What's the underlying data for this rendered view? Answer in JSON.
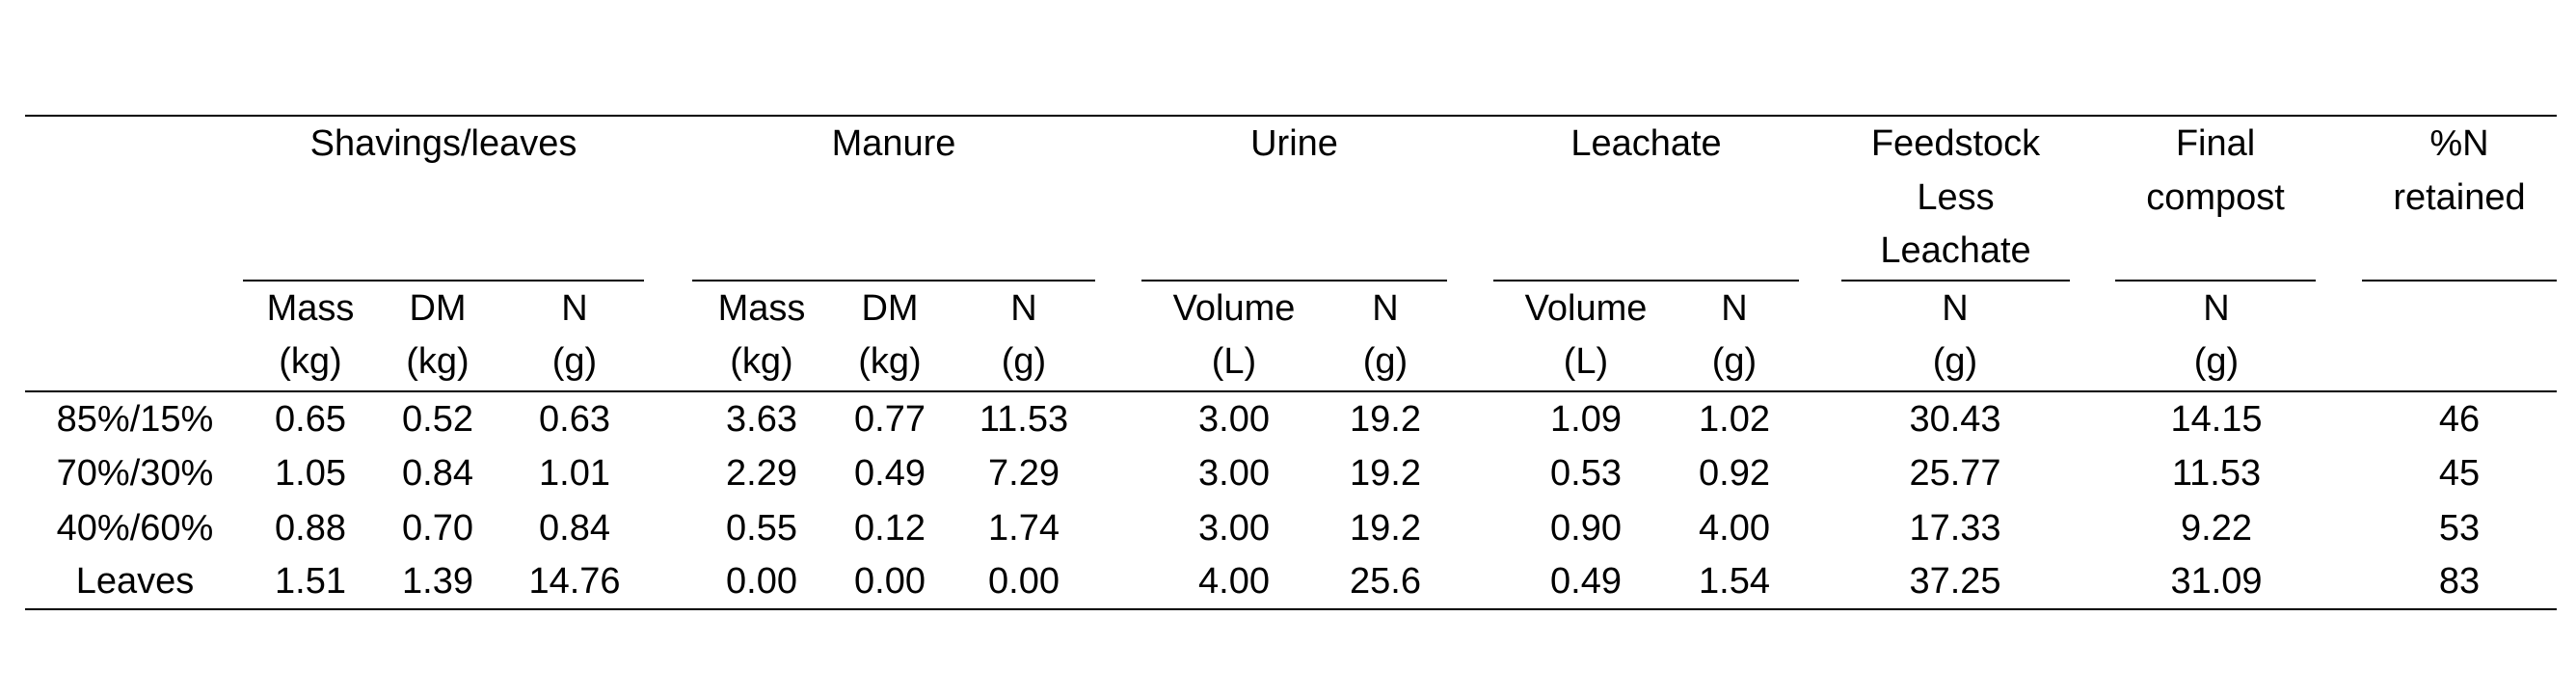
{
  "table": {
    "groups": [
      {
        "label": [
          "Shavings/leaves"
        ],
        "columns": [
          [
            "Mass",
            "(kg)"
          ],
          [
            "DM",
            "(kg)"
          ],
          [
            "N",
            "(g)"
          ]
        ]
      },
      {
        "label": [
          "Manure"
        ],
        "columns": [
          [
            "Mass",
            "(kg)"
          ],
          [
            "DM",
            "(kg)"
          ],
          [
            "N",
            "(g)"
          ]
        ]
      },
      {
        "label": [
          "Urine"
        ],
        "columns": [
          [
            "Volume",
            "(L)"
          ],
          [
            "N",
            "(g)"
          ]
        ]
      },
      {
        "label": [
          "Leachate"
        ],
        "columns": [
          [
            "Volume",
            "(L)"
          ],
          [
            "N",
            "(g)"
          ]
        ]
      },
      {
        "label": [
          "Feedstock",
          "Less",
          "Leachate"
        ],
        "columns": [
          [
            "N",
            "(g)"
          ]
        ]
      },
      {
        "label": [
          "Final",
          "compost"
        ],
        "columns": [
          [
            "N",
            "(g)"
          ]
        ]
      },
      {
        "label": [
          "%N",
          "retained"
        ],
        "columns": []
      }
    ],
    "rows": [
      {
        "label": "85%/15%",
        "cells": [
          "0.65",
          "0.52",
          "0.63",
          "3.63",
          "0.77",
          "11.53",
          "3.00",
          "19.2",
          "1.09",
          "1.02",
          "30.43",
          "14.15",
          "46"
        ]
      },
      {
        "label": "70%/30%",
        "cells": [
          "1.05",
          "0.84",
          "1.01",
          "2.29",
          "0.49",
          "7.29",
          "3.00",
          "19.2",
          "0.53",
          "0.92",
          "25.77",
          "11.53",
          "45"
        ]
      },
      {
        "label": "40%/60%",
        "cells": [
          "0.88",
          "0.70",
          "0.84",
          "0.55",
          "0.12",
          "1.74",
          "3.00",
          "19.2",
          "0.90",
          "4.00",
          "17.33",
          "9.22",
          "53"
        ]
      },
      {
        "label": "Leaves",
        "cells": [
          "1.51",
          "1.39",
          "14.76",
          "0.00",
          "0.00",
          "0.00",
          "4.00",
          "25.6",
          "0.49",
          "1.54",
          "37.25",
          "31.09",
          "83"
        ]
      }
    ]
  }
}
